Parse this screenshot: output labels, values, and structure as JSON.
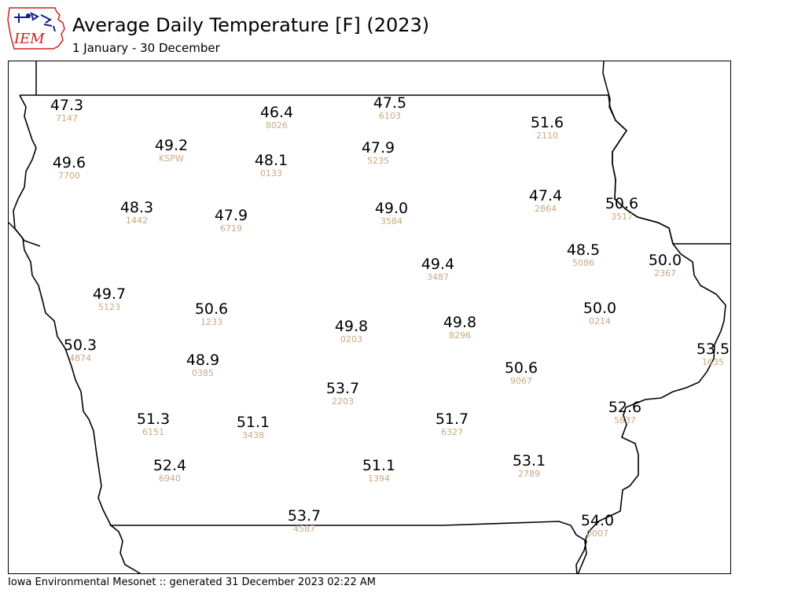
{
  "header": {
    "logo_text": "IEM",
    "title": "Average Daily Temperature [F] (2023)",
    "subtitle": "1 January - 30 December"
  },
  "footer": {
    "text": "Iowa Environmental Mesonet :: generated 31 December 2023 02:22 AM"
  },
  "colors": {
    "value_text": "#000000",
    "station_id_text": "#c8a880",
    "border_lines": "#000000",
    "logo_red": "#cc2222",
    "logo_blue": "#1a1a8c"
  },
  "map": {
    "units": "F",
    "stations": [
      {
        "value": "47.3",
        "id": "7147"
      },
      {
        "value": "46.4",
        "id": "8026"
      },
      {
        "value": "47.5",
        "id": "6103"
      },
      {
        "value": "51.6",
        "id": "2110"
      },
      {
        "value": "49.2",
        "id": "KSPW"
      },
      {
        "value": "49.6",
        "id": "7700"
      },
      {
        "value": "48.1",
        "id": "0133"
      },
      {
        "value": "47.9",
        "id": "5235"
      },
      {
        "value": "48.3",
        "id": "1442"
      },
      {
        "value": "47.9",
        "id": "6719"
      },
      {
        "value": "49.0",
        "id": "3584"
      },
      {
        "value": "47.4",
        "id": "2864"
      },
      {
        "value": "50.6",
        "id": "3517"
      },
      {
        "value": "48.5",
        "id": "5086"
      },
      {
        "value": "50.0",
        "id": "2367"
      },
      {
        "value": "49.4",
        "id": "3487"
      },
      {
        "value": "49.7",
        "id": "5123"
      },
      {
        "value": "50.6",
        "id": "1233"
      },
      {
        "value": "49.8",
        "id": "0203"
      },
      {
        "value": "49.8",
        "id": "8296"
      },
      {
        "value": "50.0",
        "id": "0214"
      },
      {
        "value": "50.3",
        "id": "4874"
      },
      {
        "value": "48.9",
        "id": "0385"
      },
      {
        "value": "53.5",
        "id": "1635"
      },
      {
        "value": "50.6",
        "id": "9067"
      },
      {
        "value": "53.7",
        "id": "2203"
      },
      {
        "value": "52.6",
        "id": "5837"
      },
      {
        "value": "51.3",
        "id": "6151"
      },
      {
        "value": "51.1",
        "id": "3438"
      },
      {
        "value": "51.7",
        "id": "6327"
      },
      {
        "value": "52.4",
        "id": "6940"
      },
      {
        "value": "51.1",
        "id": "1394"
      },
      {
        "value": "53.1",
        "id": "2789"
      },
      {
        "value": "53.7",
        "id": "4587"
      },
      {
        "value": "54.0",
        "id": "0007"
      }
    ]
  }
}
